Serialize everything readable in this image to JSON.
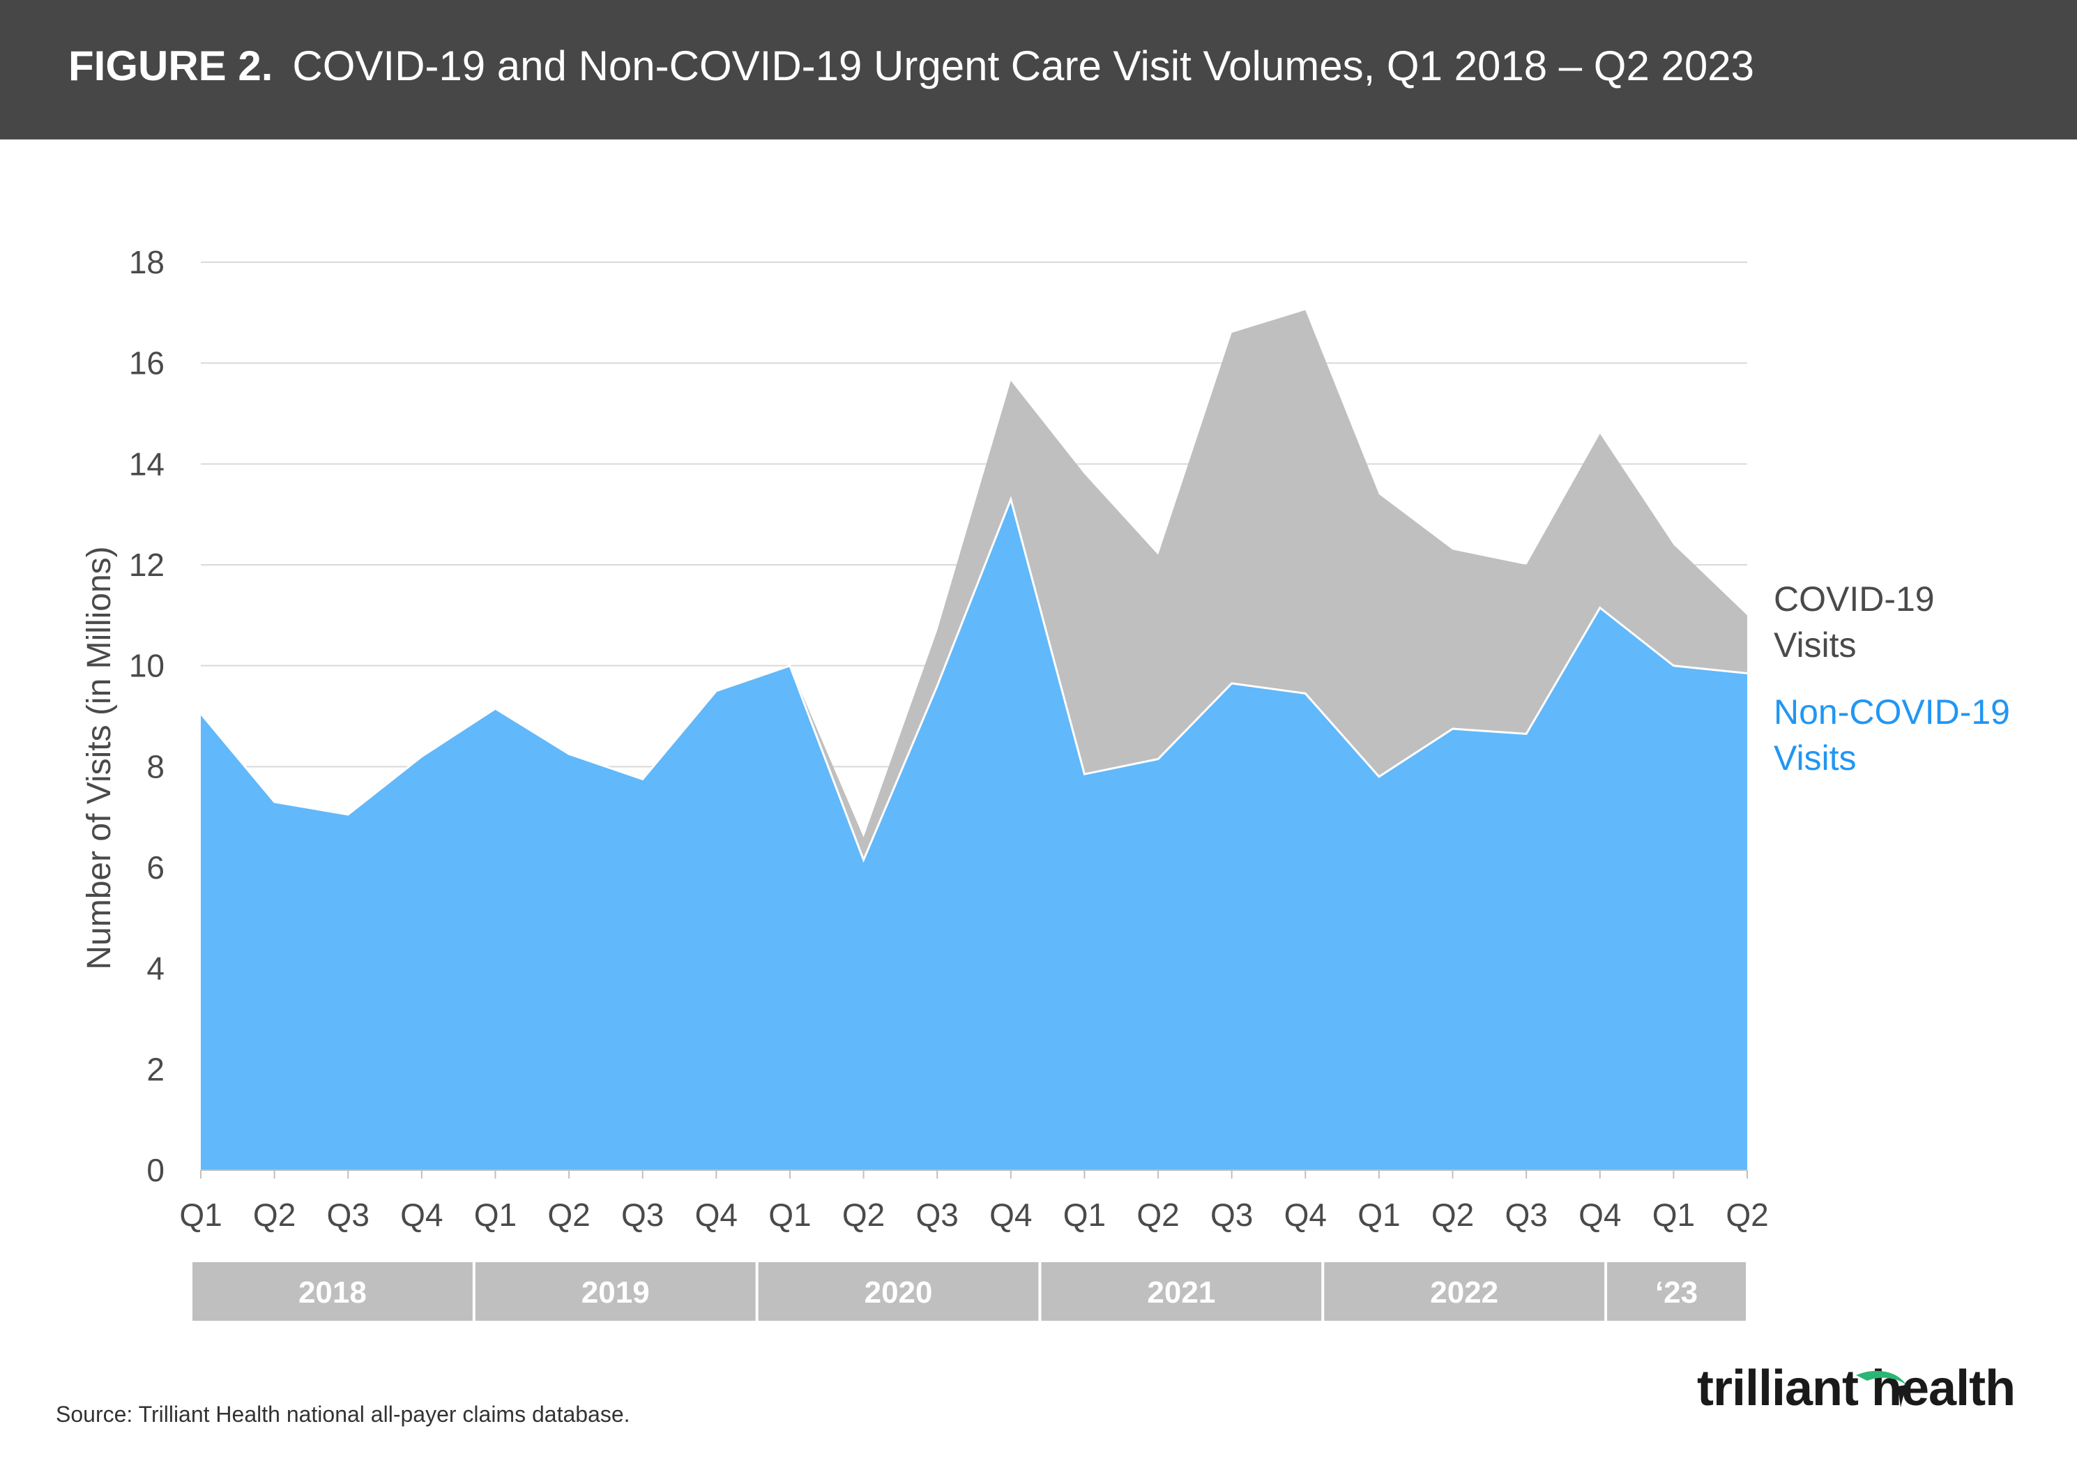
{
  "header": {
    "figure_label": "FIGURE 2.",
    "title": "COVID-19 and Non-COVID-19 Urgent Care Visit Volumes, Q1 2018 – Q2 2023"
  },
  "colors": {
    "header_bg": "#474747",
    "covid": "#bfbfbf",
    "non_covid": "#61b8fa",
    "non_covid_label": "#2196f3",
    "covid_label": "#4a4a4a",
    "grid": "#d9d9d9",
    "year_band": "#bfbfbf"
  },
  "chart_data": {
    "type": "area",
    "stacked": true,
    "ylabel": "Number of Visits (in Millions)",
    "ylim": [
      0,
      18
    ],
    "yticks": [
      0,
      2,
      4,
      6,
      8,
      10,
      12,
      14,
      16,
      18
    ],
    "grid": true,
    "categories": [
      "Q1",
      "Q2",
      "Q3",
      "Q4",
      "Q1",
      "Q2",
      "Q3",
      "Q4",
      "Q1",
      "Q2",
      "Q3",
      "Q4",
      "Q1",
      "Q2",
      "Q3",
      "Q4",
      "Q1",
      "Q2",
      "Q3",
      "Q4",
      "Q1",
      "Q2"
    ],
    "year_groups": [
      {
        "label": "2018",
        "count": 4
      },
      {
        "label": "2019",
        "count": 4
      },
      {
        "label": "2020",
        "count": 4
      },
      {
        "label": "2021",
        "count": 4
      },
      {
        "label": "2022",
        "count": 4
      },
      {
        "label": "‘23",
        "count": 2
      }
    ],
    "series": [
      {
        "name": "Non-COVID-19 Visits",
        "label_lines": [
          "Non-COVID-19",
          "Visits"
        ],
        "values": [
          9.05,
          7.3,
          7.05,
          8.2,
          9.15,
          8.25,
          7.75,
          9.5,
          10.0,
          6.15,
          9.6,
          13.3,
          7.85,
          8.15,
          9.65,
          9.45,
          7.8,
          8.75,
          8.65,
          11.15,
          10.0,
          9.85
        ]
      },
      {
        "name": "COVID-19 Visits",
        "label_lines": [
          "COVID-19",
          "Visits"
        ],
        "values": [
          0,
          0,
          0,
          0,
          0,
          0,
          0,
          0,
          0,
          0.45,
          1.1,
          2.35,
          5.95,
          4.05,
          6.95,
          7.6,
          5.6,
          3.55,
          3.35,
          3.45,
          2.4,
          1.15
        ]
      }
    ]
  },
  "footer": {
    "source": "Source: Trilliant Health national all-payer claims database.",
    "logo_text": "trilliant health"
  }
}
